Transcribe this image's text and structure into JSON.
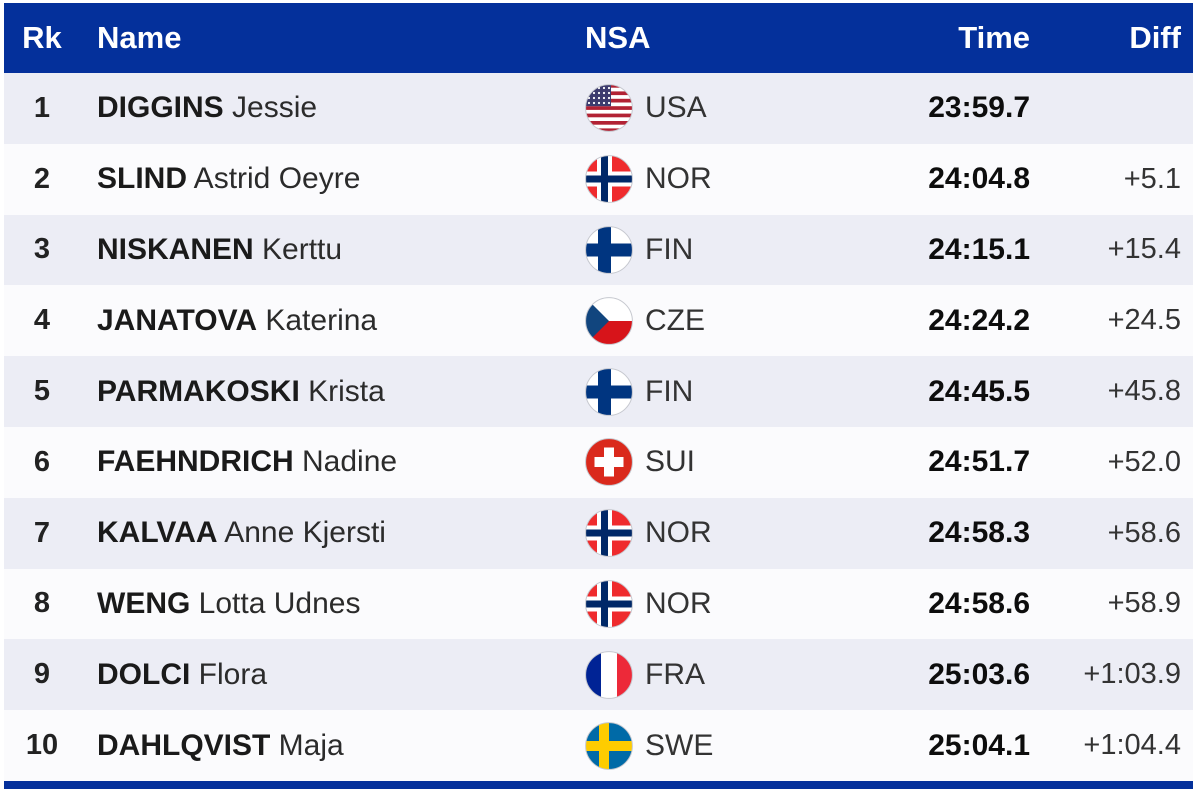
{
  "colors": {
    "header_bg": "#04309b",
    "row_alt_bg": "#ecedf5",
    "row_bg": "#fbfbfd",
    "header_text": "#ffffff"
  },
  "table": {
    "headers": {
      "rk": "Rk",
      "name": "Name",
      "nsa": "NSA",
      "time": "Time",
      "diff": "Diff"
    },
    "rows": [
      {
        "rank": "1",
        "last_name": "DIGGINS",
        "first_name": "Jessie",
        "nsa": "USA",
        "flag_icon": "flag-usa-icon",
        "time": "23:59.7",
        "diff": ""
      },
      {
        "rank": "2",
        "last_name": "SLIND",
        "first_name": "Astrid Oeyre",
        "nsa": "NOR",
        "flag_icon": "flag-nor-icon",
        "time": "24:04.8",
        "diff": "+5.1"
      },
      {
        "rank": "3",
        "last_name": "NISKANEN",
        "first_name": "Kerttu",
        "nsa": "FIN",
        "flag_icon": "flag-fin-icon",
        "time": "24:15.1",
        "diff": "+15.4"
      },
      {
        "rank": "4",
        "last_name": "JANATOVA",
        "first_name": "Katerina",
        "nsa": "CZE",
        "flag_icon": "flag-cze-icon",
        "time": "24:24.2",
        "diff": "+24.5"
      },
      {
        "rank": "5",
        "last_name": "PARMAKOSKI",
        "first_name": "Krista",
        "nsa": "FIN",
        "flag_icon": "flag-fin-icon",
        "time": "24:45.5",
        "diff": "+45.8"
      },
      {
        "rank": "6",
        "last_name": "FAEHNDRICH",
        "first_name": "Nadine",
        "nsa": "SUI",
        "flag_icon": "flag-sui-icon",
        "time": "24:51.7",
        "diff": "+52.0"
      },
      {
        "rank": "7",
        "last_name": "KALVAA",
        "first_name": "Anne Kjersti",
        "nsa": "NOR",
        "flag_icon": "flag-nor-icon",
        "time": "24:58.3",
        "diff": "+58.6"
      },
      {
        "rank": "8",
        "last_name": "WENG",
        "first_name": "Lotta Udnes",
        "nsa": "NOR",
        "flag_icon": "flag-nor-icon",
        "time": "24:58.6",
        "diff": "+58.9"
      },
      {
        "rank": "9",
        "last_name": "DOLCI",
        "first_name": "Flora",
        "nsa": "FRA",
        "flag_icon": "flag-fra-icon",
        "time": "25:03.6",
        "diff": "+1:03.9"
      },
      {
        "rank": "10",
        "last_name": "DAHLQVIST",
        "first_name": "Maja",
        "nsa": "SWE",
        "flag_icon": "flag-swe-icon",
        "time": "25:04.1",
        "diff": "+1:04.4"
      }
    ]
  }
}
